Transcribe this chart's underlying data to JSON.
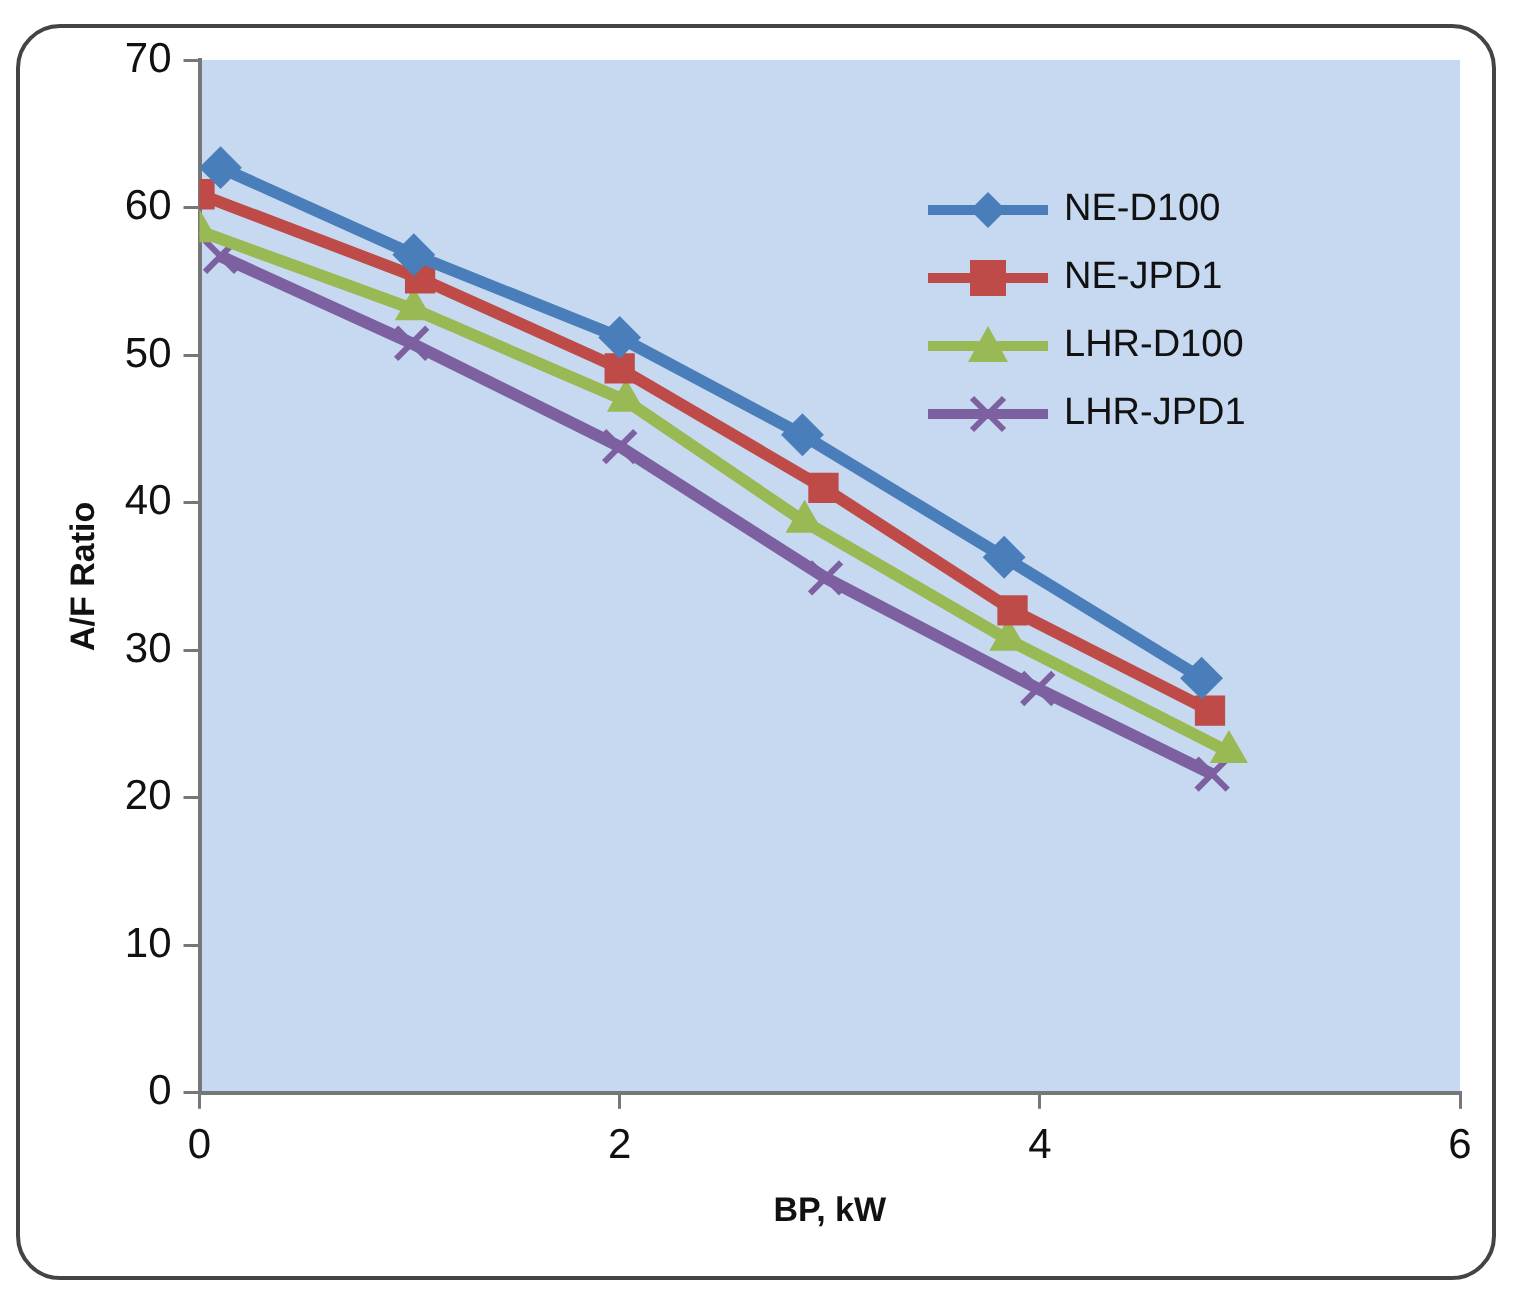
{
  "chart_data": {
    "type": "line",
    "xlabel": "BP, kW",
    "ylabel": "A/F Ratio",
    "xlim": [
      0,
      6
    ],
    "xticks": [
      0,
      2,
      4,
      6
    ],
    "ylim": [
      0,
      70
    ],
    "yticks": [
      0,
      10,
      20,
      30,
      40,
      50,
      60,
      70
    ],
    "grid": false,
    "legend": "top right",
    "line_style": "solid",
    "series": [
      {
        "name": "NE-D100",
        "color": "#4a7ebb",
        "marker": "diamond",
        "x": [
          0.1,
          1.02,
          2.0,
          2.87,
          3.83,
          4.77
        ],
        "values": [
          62.7,
          56.8,
          51.2,
          44.6,
          36.3,
          28.1
        ]
      },
      {
        "name": "NE-JPD1",
        "color": "#be4b48",
        "marker": "square",
        "x": [
          0,
          1.05,
          2.0,
          2.97,
          3.87,
          4.81
        ],
        "values": [
          60.9,
          55.2,
          49.1,
          41.0,
          32.7,
          25.9
        ]
      },
      {
        "name": "LHR-D100",
        "color": "#98b954",
        "marker": "triangle",
        "x": [
          0,
          1.02,
          2.03,
          2.88,
          3.85,
          4.9
        ],
        "values": [
          58.4,
          53.1,
          46.9,
          38.7,
          30.7,
          23.1
        ]
      },
      {
        "name": "LHR-JPD1",
        "color": "#7d60a0",
        "marker": "cross",
        "x": [
          0.1,
          1.01,
          2.0,
          2.98,
          3.99,
          4.82
        ],
        "values": [
          56.7,
          50.8,
          43.8,
          34.9,
          27.4,
          21.6
        ]
      }
    ]
  }
}
